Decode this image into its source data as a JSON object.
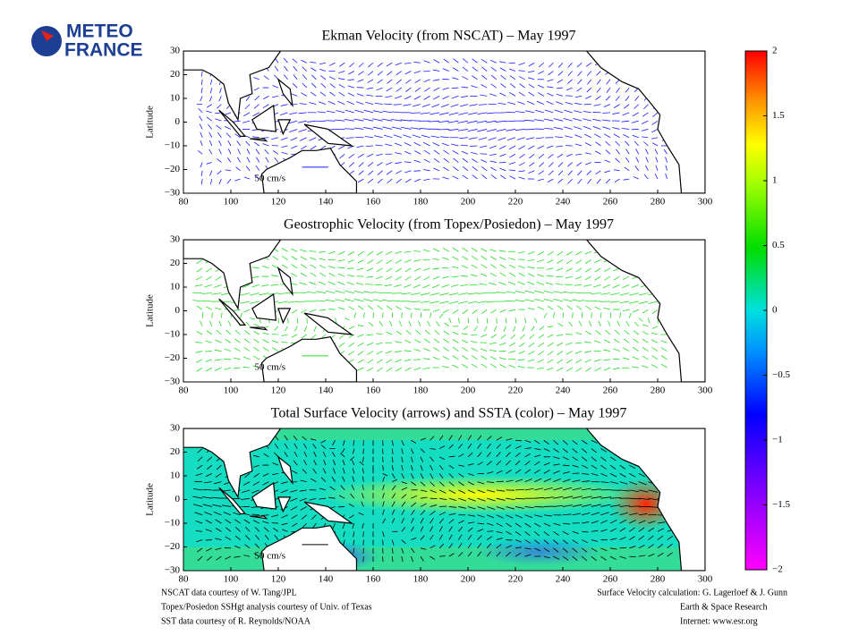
{
  "logo": {
    "line1": "METEO",
    "line2": "FRANCE"
  },
  "panels": [
    {
      "title": "Ekman Velocity (from NSCAT) – May 1997",
      "ylabel": "Latitude",
      "scale_label": "50 cm/s",
      "arrow_color": "#1a1aff",
      "ssta": false
    },
    {
      "title": "Geostrophic Velocity (from Topex/Posiedon) – May 1997",
      "ylabel": "Latitude",
      "scale_label": "50 cm/s",
      "arrow_color": "#22dd22",
      "ssta": false
    },
    {
      "title": "Total Surface Velocity (arrows) and SSTA (color) – May 1997",
      "ylabel": "Latitude",
      "scale_label": "50 cm/s",
      "arrow_color": "#000000",
      "ssta": true
    }
  ],
  "axes": {
    "xlim": [
      80,
      300
    ],
    "xticks": [
      80,
      100,
      120,
      140,
      160,
      180,
      200,
      220,
      240,
      260,
      280,
      300
    ],
    "ylim": [
      -30,
      30
    ],
    "yticks": [
      {
        "value": -30,
        "label": "−30"
      },
      {
        "value": -20,
        "label": "−20"
      },
      {
        "value": -10,
        "label": "−10"
      },
      0,
      10,
      20,
      30
    ]
  },
  "colorbar": {
    "lim": [
      -2,
      2
    ],
    "ticks": [
      {
        "value": -2,
        "label": "−2"
      },
      {
        "value": -1.5,
        "label": "−1.5"
      },
      {
        "value": -1,
        "label": "−1"
      },
      {
        "value": -0.5,
        "label": "−0.5"
      },
      0,
      0.5,
      1,
      1.5,
      2
    ]
  },
  "credits": {
    "left": [
      "NSCAT data courtesy of W. Tang/JPL",
      "Topex/Posiedon SSHgt analysis courtesy of Univ. of Texas",
      "SST data courtesy of R. Reynolds/NOAA"
    ],
    "right": [
      "Surface Velocity calculation:  G. Lagerloef & J. Gunn",
      "Earth & Space Research",
      "Internet: www.esr.org"
    ]
  }
}
